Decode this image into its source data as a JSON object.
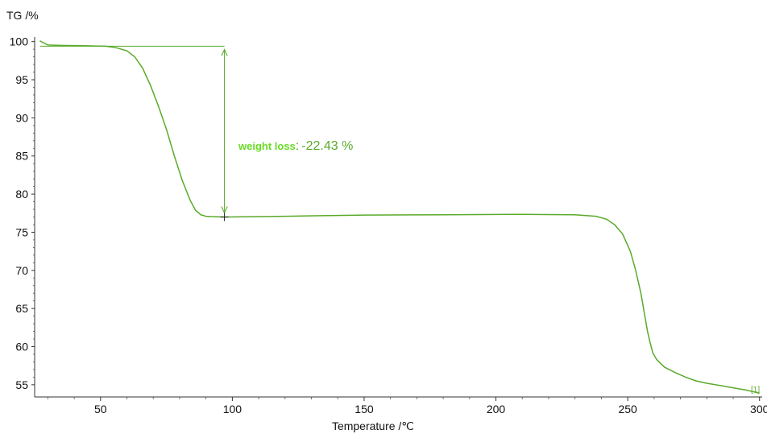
{
  "chart_data": {
    "type": "line",
    "ylabel": "TG /%",
    "xlabel": "Temperature /℃",
    "xlim": [
      25,
      301
    ],
    "ylim": [
      53.4,
      100.6
    ],
    "xticks": [
      50,
      100,
      150,
      200,
      250,
      300
    ],
    "yticks": [
      55,
      60,
      65,
      70,
      75,
      80,
      85,
      90,
      95,
      100
    ],
    "grid": false,
    "series": [
      {
        "name": "[1]",
        "color": "#5aaa2a",
        "points": [
          [
            27,
            100.1
          ],
          [
            28,
            99.9
          ],
          [
            30,
            99.55
          ],
          [
            35,
            99.5
          ],
          [
            45,
            99.45
          ],
          [
            52,
            99.4
          ],
          [
            56,
            99.2
          ],
          [
            60,
            98.8
          ],
          [
            63,
            98.0
          ],
          [
            66,
            96.5
          ],
          [
            69,
            94.2
          ],
          [
            72,
            91.5
          ],
          [
            75,
            88.5
          ],
          [
            78,
            85.0
          ],
          [
            81,
            81.8
          ],
          [
            84,
            79.2
          ],
          [
            86,
            77.9
          ],
          [
            88,
            77.3
          ],
          [
            90,
            77.1
          ],
          [
            92,
            77.05
          ],
          [
            97,
            77.0
          ],
          [
            120,
            77.1
          ],
          [
            150,
            77.25
          ],
          [
            180,
            77.3
          ],
          [
            210,
            77.35
          ],
          [
            230,
            77.3
          ],
          [
            238,
            77.1
          ],
          [
            242,
            76.7
          ],
          [
            245,
            76.0
          ],
          [
            248,
            74.8
          ],
          [
            251,
            72.5
          ],
          [
            253,
            70.0
          ],
          [
            255,
            67.0
          ],
          [
            256.5,
            64.0
          ],
          [
            257.5,
            62.0
          ],
          [
            258.5,
            60.5
          ],
          [
            259.5,
            59.2
          ],
          [
            261,
            58.3
          ],
          [
            264,
            57.3
          ],
          [
            268,
            56.6
          ],
          [
            272,
            56.0
          ],
          [
            276,
            55.5
          ],
          [
            280,
            55.2
          ],
          [
            285,
            54.9
          ],
          [
            290,
            54.6
          ],
          [
            295,
            54.3
          ],
          [
            300,
            53.9
          ]
        ]
      }
    ],
    "annotation": {
      "label": "weight loss",
      "separator": ":",
      "value": "-22.43 %",
      "label_color": "#66dd22",
      "value_color": "#5aaa2a",
      "baseline_y": 99.4,
      "baseline_x_range": [
        27,
        97
      ],
      "arrow_x": 97,
      "arrow_y_range": [
        99.4,
        77.0
      ],
      "cross_marker": [
        97,
        77.0
      ]
    },
    "series_tag": "[1]"
  }
}
